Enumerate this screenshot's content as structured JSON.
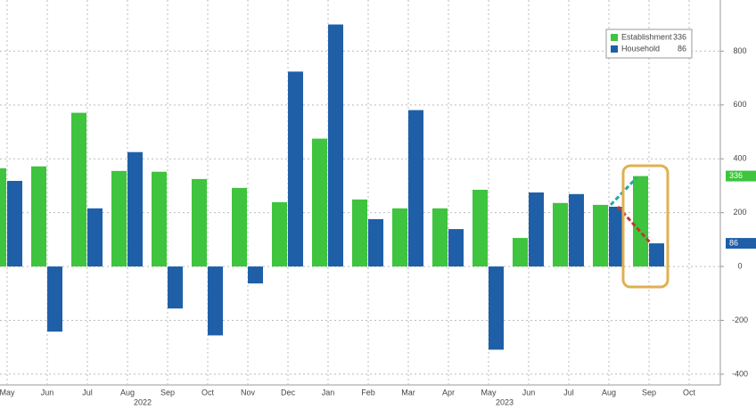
{
  "chart_data": {
    "type": "bar",
    "categories": [
      "May",
      "Jun",
      "Jul",
      "Aug",
      "Sep",
      "Oct",
      "Nov",
      "Dec",
      "Jan",
      "Feb",
      "Mar",
      "Apr",
      "May",
      "Jun",
      "Jul",
      "Aug",
      "Sep",
      "Oct"
    ],
    "year_labels": [
      "2022",
      "2023"
    ],
    "series": [
      {
        "name": "Establishment",
        "color": "#3ec43e",
        "values": [
          365,
          372,
          571,
          355,
          352,
          325,
          292,
          239,
          475,
          249,
          216,
          216,
          285,
          106,
          236,
          229,
          336,
          null
        ]
      },
      {
        "name": "Household",
        "color": "#1f5fa8",
        "values": [
          318,
          -242,
          216,
          425,
          -156,
          -256,
          -63,
          724,
          899,
          176,
          581,
          139,
          -309,
          275,
          269,
          222,
          86,
          null
        ]
      }
    ],
    "ylim": [
      -440,
      990
    ],
    "yticks": [
      -400,
      -200,
      0,
      200,
      400,
      600,
      800
    ],
    "grid": true
  }
}
